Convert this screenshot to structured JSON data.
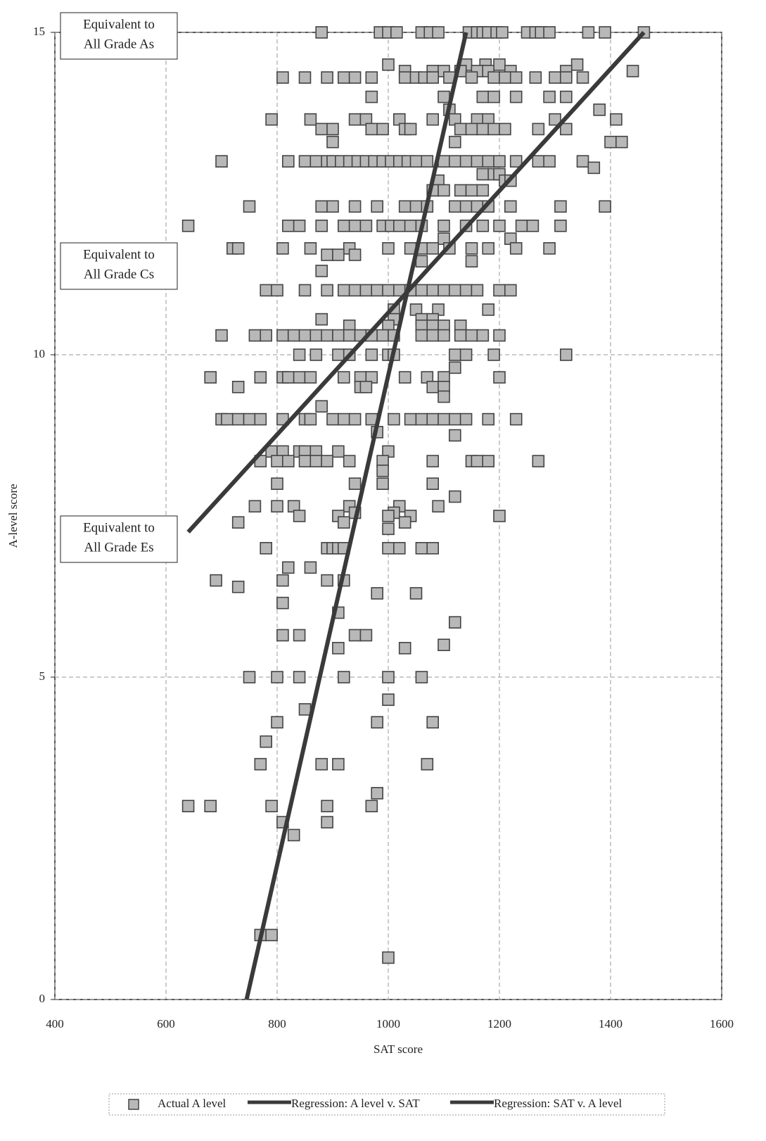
{
  "chart_data": {
    "type": "scatter",
    "xlabel": "SAT score",
    "ylabel": "A-level score",
    "xlim": [
      400,
      1600
    ],
    "xticks": [
      400,
      600,
      800,
      1000,
      1200,
      1400,
      1600
    ],
    "ylim": [
      0,
      15
    ],
    "yticks": [
      0,
      5,
      10,
      15
    ],
    "grid": true,
    "legend": "bottom",
    "annotations": [
      {
        "lines": [
          "Equivalent to",
          "All Grade As"
        ]
      },
      {
        "lines": [
          "Equivalent to",
          "All Grade Cs"
        ]
      },
      {
        "lines": [
          "Equivalent to",
          "All Grade Es"
        ]
      }
    ],
    "series": [
      {
        "name": "Actual A level",
        "color": "#b8b8b8",
        "marker": "square",
        "x": [
          880,
          985,
          1000,
          1015,
          1060,
          1075,
          1090,
          1145,
          1160,
          1170,
          1180,
          1195,
          1205,
          1250,
          1265,
          1275,
          1290,
          1360,
          1390,
          1460,
          1000,
          1140,
          1175,
          1200,
          1340,
          1030,
          1080,
          1100,
          1130,
          1160,
          1180,
          1220,
          1320,
          1440,
          810,
          850,
          890,
          920,
          940,
          970,
          1030,
          1050,
          1065,
          1080,
          1110,
          1150,
          1190,
          1210,
          1230,
          1265,
          1300,
          1320,
          1350,
          970,
          1100,
          1170,
          1190,
          1230,
          1290,
          1320,
          1110,
          1380,
          790,
          860,
          940,
          960,
          1020,
          1080,
          1120,
          1160,
          1180,
          1300,
          1410,
          880,
          900,
          970,
          990,
          1030,
          1040,
          1130,
          1150,
          1170,
          1190,
          1210,
          1270,
          1320,
          900,
          1120,
          1400,
          1420,
          700,
          820,
          850,
          870,
          890,
          900,
          915,
          930,
          945,
          960,
          975,
          990,
          1005,
          1020,
          1035,
          1050,
          1070,
          1100,
          1120,
          1140,
          1160,
          1180,
          1200,
          1230,
          1270,
          1290,
          1350,
          1370,
          1170,
          1190,
          1200,
          1090,
          1210,
          1220,
          1080,
          1100,
          1130,
          1150,
          1170,
          750,
          880,
          900,
          940,
          980,
          1030,
          1050,
          1070,
          1120,
          1140,
          1160,
          1180,
          1220,
          1310,
          1390,
          640,
          820,
          840,
          880,
          920,
          940,
          960,
          990,
          1005,
          1020,
          1040,
          1060,
          1100,
          1140,
          1170,
          1200,
          1240,
          1260,
          1310,
          1100,
          1220,
          720,
          730,
          810,
          860,
          930,
          1000,
          1040,
          1060,
          1080,
          1110,
          1150,
          1180,
          1230,
          1290,
          890,
          910,
          940,
          1060,
          1150,
          880,
          780,
          800,
          850,
          890,
          920,
          940,
          960,
          980,
          1000,
          1020,
          1040,
          1060,
          1080,
          1100,
          1120,
          1140,
          1160,
          1200,
          1220,
          1010,
          1050,
          1090,
          1180,
          880,
          1010,
          1060,
          1080,
          930,
          1000,
          1060,
          1080,
          1100,
          1130,
          700,
          760,
          780,
          810,
          830,
          850,
          870,
          890,
          910,
          930,
          950,
          970,
          990,
          1010,
          1060,
          1080,
          1100,
          1130,
          1150,
          1170,
          1200,
          840,
          870,
          910,
          930,
          970,
          1000,
          1010,
          1120,
          1140,
          1190,
          1320,
          1120,
          680,
          770,
          810,
          820,
          840,
          860,
          920,
          950,
          970,
          1030,
          1070,
          1100,
          1200,
          730,
          950,
          960,
          1080,
          1100,
          1100,
          880,
          700,
          710,
          730,
          750,
          770,
          810,
          850,
          860,
          900,
          920,
          940,
          970,
          1010,
          1040,
          1060,
          1080,
          1100,
          1120,
          1140,
          1180,
          1230,
          980,
          1120,
          790,
          810,
          840,
          850,
          870,
          910,
          1000,
          770,
          800,
          820,
          850,
          870,
          890,
          930,
          990,
          1080,
          1150,
          1160,
          1180,
          1270,
          990,
          800,
          940,
          990,
          1080,
          1120,
          760,
          800,
          830,
          930,
          1020,
          1090,
          940,
          1010,
          840,
          910,
          1000,
          1040,
          1200,
          730,
          920,
          1030,
          1000,
          780,
          890,
          900,
          910,
          920,
          1000,
          1020,
          1060,
          1080,
          820,
          860,
          690,
          810,
          890,
          920,
          730,
          980,
          1050,
          810,
          910,
          1120,
          810,
          840,
          940,
          960,
          1100,
          910,
          1030,
          750,
          800,
          840,
          920,
          1000,
          1060,
          1000,
          850,
          800,
          980,
          1080,
          780,
          770,
          880,
          910,
          1070,
          980,
          640,
          680,
          790,
          890,
          970,
          810,
          890,
          830,
          770,
          790,
          1000
        ],
        "values": [
          15,
          15,
          15,
          15,
          15,
          15,
          15,
          15,
          15,
          15,
          15,
          15,
          15,
          15,
          15,
          15,
          15,
          15,
          15,
          15,
          14.5,
          14.5,
          14.5,
          14.5,
          14.5,
          14.4,
          14.4,
          14.4,
          14.4,
          14.4,
          14.4,
          14.4,
          14.4,
          14.4,
          14.3,
          14.3,
          14.3,
          14.3,
          14.3,
          14.3,
          14.3,
          14.3,
          14.3,
          14.3,
          14.3,
          14.3,
          14.3,
          14.3,
          14.3,
          14.3,
          14.3,
          14.3,
          14.3,
          14,
          14,
          14,
          14,
          14,
          14,
          14,
          13.8,
          13.8,
          13.65,
          13.65,
          13.65,
          13.65,
          13.65,
          13.65,
          13.65,
          13.65,
          13.65,
          13.65,
          13.65,
          13.5,
          13.5,
          13.5,
          13.5,
          13.5,
          13.5,
          13.5,
          13.5,
          13.5,
          13.5,
          13.5,
          13.5,
          13.5,
          13.3,
          13.3,
          13.3,
          13.3,
          13,
          13,
          13,
          13,
          13,
          13,
          13,
          13,
          13,
          13,
          13,
          13,
          13,
          13,
          13,
          13,
          13,
          13,
          13,
          13,
          13,
          13,
          13,
          13,
          13,
          13,
          13,
          12.9,
          12.8,
          12.8,
          12.8,
          12.7,
          12.7,
          12.7,
          12.55,
          12.55,
          12.55,
          12.55,
          12.55,
          12.3,
          12.3,
          12.3,
          12.3,
          12.3,
          12.3,
          12.3,
          12.3,
          12.3,
          12.3,
          12.3,
          12.3,
          12.3,
          12.3,
          12.3,
          12,
          12,
          12,
          12,
          12,
          12,
          12,
          12,
          12,
          12,
          12,
          12,
          12,
          12,
          12,
          12,
          12,
          12,
          12,
          11.8,
          11.8,
          11.65,
          11.65,
          11.65,
          11.65,
          11.65,
          11.65,
          11.65,
          11.65,
          11.65,
          11.65,
          11.65,
          11.65,
          11.65,
          11.65,
          11.55,
          11.55,
          11.55,
          11.45,
          11.45,
          11.3,
          11,
          11,
          11,
          11,
          11,
          11,
          11,
          11,
          11,
          11,
          11,
          11,
          11,
          11,
          11,
          11,
          11,
          11,
          11,
          10.7,
          10.7,
          10.7,
          10.7,
          10.55,
          10.55,
          10.55,
          10.55,
          10.45,
          10.45,
          10.45,
          10.45,
          10.45,
          10.45,
          10.3,
          10.3,
          10.3,
          10.3,
          10.3,
          10.3,
          10.3,
          10.3,
          10.3,
          10.3,
          10.3,
          10.3,
          10.3,
          10.3,
          10.3,
          10.3,
          10.3,
          10.3,
          10.3,
          10.3,
          10.3,
          10,
          10,
          10,
          10,
          10,
          10,
          10,
          10,
          10,
          10,
          10,
          9.8,
          9.65,
          9.65,
          9.65,
          9.65,
          9.65,
          9.65,
          9.65,
          9.65,
          9.65,
          9.65,
          9.65,
          9.65,
          9.65,
          9.5,
          9.5,
          9.5,
          9.5,
          9.5,
          9.35,
          9.2,
          9,
          9,
          9,
          9,
          9,
          9,
          9,
          9,
          9,
          9,
          9,
          9,
          9,
          9,
          9,
          9,
          9,
          9,
          9,
          9,
          9,
          8.8,
          8.75,
          8.5,
          8.5,
          8.5,
          8.5,
          8.5,
          8.5,
          8.5,
          8.35,
          8.35,
          8.35,
          8.35,
          8.35,
          8.35,
          8.35,
          8.35,
          8.35,
          8.35,
          8.35,
          8.35,
          8.35,
          8.2,
          8,
          8,
          8,
          8,
          7.8,
          7.65,
          7.65,
          7.65,
          7.65,
          7.65,
          7.65,
          7.55,
          7.55,
          7.5,
          7.5,
          7.5,
          7.5,
          7.5,
          7.4,
          7.4,
          7.4,
          7.3,
          7,
          7,
          7,
          7,
          7,
          7,
          7,
          7,
          7,
          6.7,
          6.7,
          6.5,
          6.5,
          6.5,
          6.5,
          6.4,
          6.3,
          6.3,
          6.15,
          6,
          5.85,
          5.65,
          5.65,
          5.65,
          5.65,
          5.5,
          5.45,
          5.45,
          5,
          5,
          5,
          5,
          5,
          5,
          4.65,
          4.5,
          4.3,
          4.3,
          4.3,
          4,
          3.65,
          3.65,
          3.65,
          3.65,
          3.2,
          3,
          3,
          3,
          3,
          3,
          2.75,
          2.75,
          2.55,
          1,
          1,
          0.65
        ]
      },
      {
        "name": "Regression: A level v. SAT",
        "color": "#3a3a3a",
        "marker": "line",
        "x": [
          640,
          1460
        ],
        "values": [
          7.25,
          15
        ]
      },
      {
        "name": "Regression: SAT v. A level",
        "color": "#3a3a3a",
        "marker": "line",
        "x": [
          745,
          1140
        ],
        "values": [
          0,
          15
        ]
      }
    ]
  }
}
